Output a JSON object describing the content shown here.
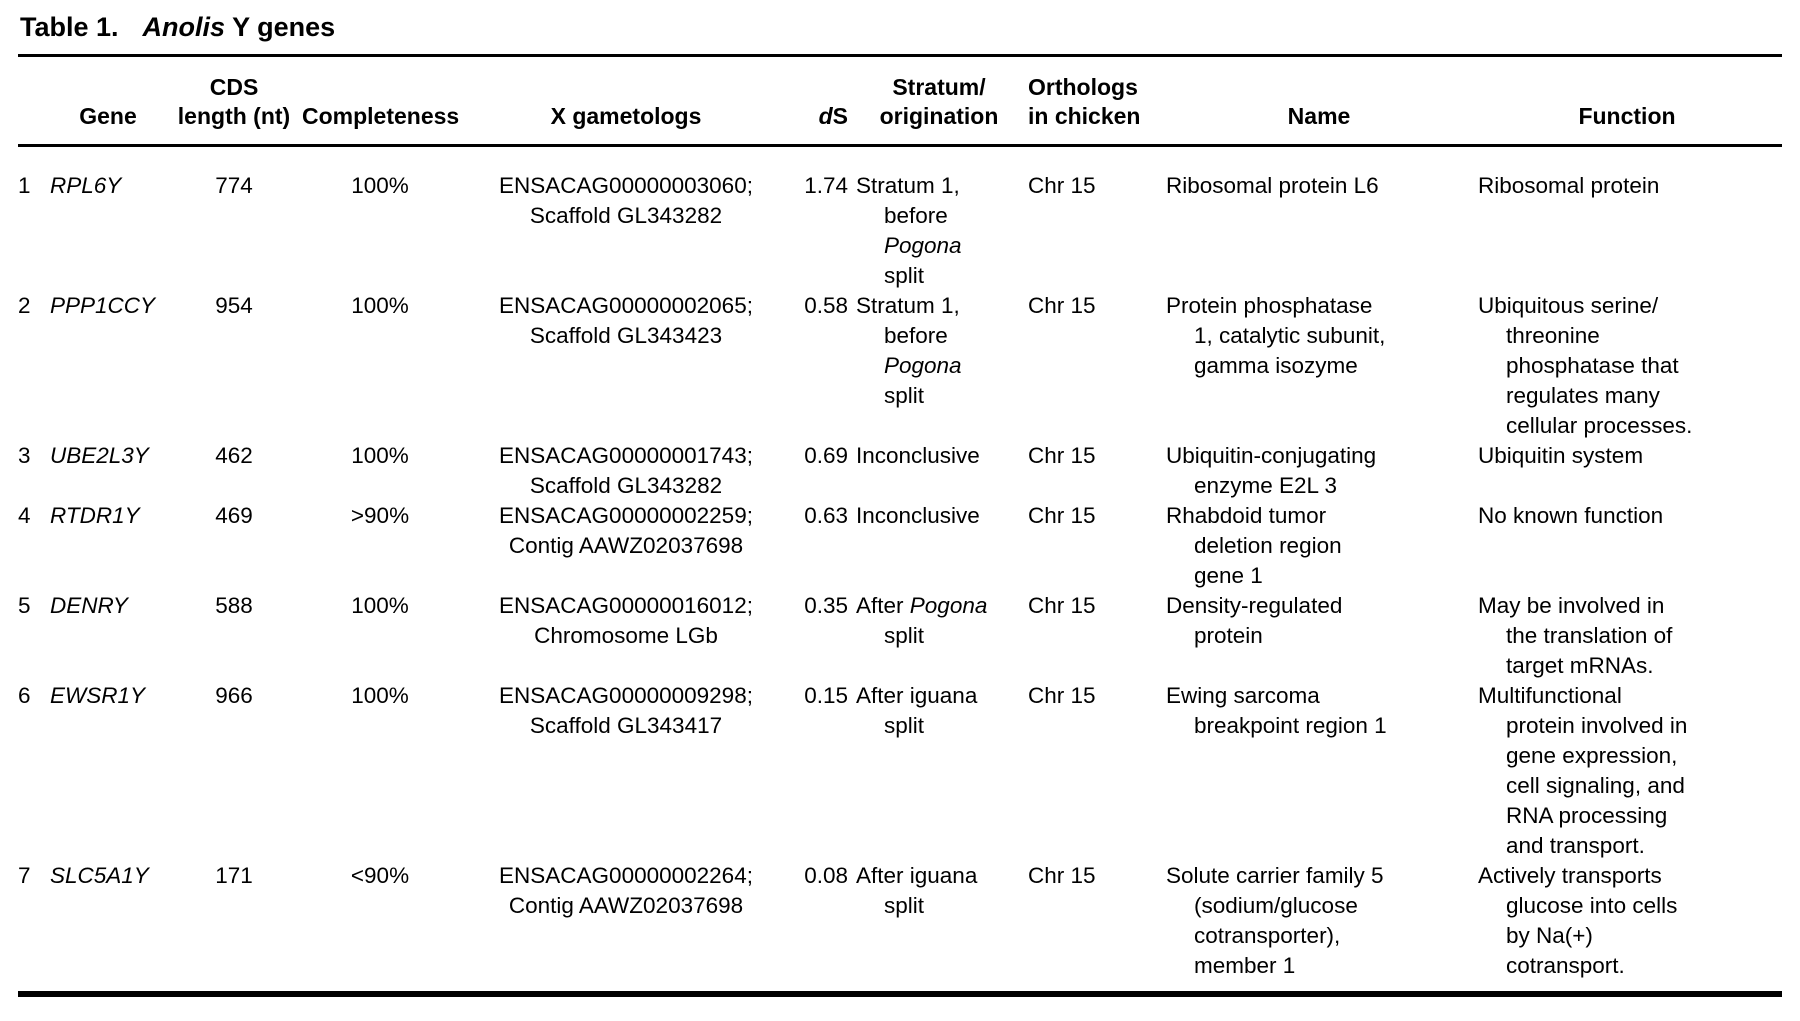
{
  "table": {
    "title": {
      "label": "Table 1.",
      "species": "Anolis",
      "suffix": "Y genes"
    },
    "headers": {
      "num": "",
      "gene": "Gene",
      "cds_length": "CDS\nlength (nt)",
      "completeness": "Completeness",
      "x_gametologs": "X gametologs",
      "ds": {
        "italic": "d",
        "rest": "S"
      },
      "stratum": "Stratum/\norigination",
      "orthologs": "Orthologs\nin chicken",
      "name": "Name",
      "function": "Function"
    },
    "rows": [
      {
        "num": "1",
        "gene": "RPL6Y",
        "cds_length": "774",
        "completeness": "100%",
        "x_gametologs": "ENSACAG00000003060;\nScaffold GL343282",
        "ds": "1.74",
        "stratum": {
          "pre": "Stratum 1,\nbefore\n",
          "italic": "Pogona",
          "post": "\nsplit"
        },
        "orthologs": "Chr 15",
        "name": "Ribosomal protein L6",
        "function": "Ribosomal protein"
      },
      {
        "num": "2",
        "gene": "PPP1CCY",
        "cds_length": "954",
        "completeness": "100%",
        "x_gametologs": "ENSACAG00000002065;\nScaffold GL343423",
        "ds": "0.58",
        "stratum": {
          "pre": "Stratum 1,\nbefore\n",
          "italic": "Pogona",
          "post": "\nsplit"
        },
        "orthologs": "Chr 15",
        "name": "Protein phosphatase\n1, catalytic subunit,\ngamma isozyme",
        "function": "Ubiquitous serine/\nthreonine\nphosphatase that\nregulates many\ncellular processes."
      },
      {
        "num": "3",
        "gene": "UBE2L3Y",
        "cds_length": "462",
        "completeness": "100%",
        "x_gametologs": "ENSACAG00000001743;\nScaffold GL343282",
        "ds": "0.69",
        "stratum": {
          "pre": "Inconclusive",
          "italic": "",
          "post": ""
        },
        "orthologs": "Chr 15",
        "name": "Ubiquitin-conjugating\nenzyme E2L 3",
        "function": "Ubiquitin system"
      },
      {
        "num": "4",
        "gene": "RTDR1Y",
        "cds_length": "469",
        "completeness": ">90%",
        "x_gametologs": "ENSACAG00000002259;\nContig AAWZ02037698",
        "ds": "0.63",
        "stratum": {
          "pre": "Inconclusive",
          "italic": "",
          "post": ""
        },
        "orthologs": "Chr 15",
        "name": "Rhabdoid tumor\ndeletion region\ngene 1",
        "function": "No known function"
      },
      {
        "num": "5",
        "gene": "DENRY",
        "cds_length": "588",
        "completeness": "100%",
        "x_gametologs": "ENSACAG00000016012;\nChromosome LGb",
        "ds": "0.35",
        "stratum": {
          "pre": "After ",
          "italic": "Pogona",
          "post": "\nsplit"
        },
        "orthologs": "Chr 15",
        "name": "Density-regulated\nprotein",
        "function": "May be involved in\nthe translation of\ntarget mRNAs."
      },
      {
        "num": "6",
        "gene": "EWSR1Y",
        "cds_length": "966",
        "completeness": "100%",
        "x_gametologs": "ENSACAG00000009298;\nScaffold GL343417",
        "ds": "0.15",
        "stratum": {
          "pre": "After iguana\nsplit",
          "italic": "",
          "post": ""
        },
        "orthologs": "Chr 15",
        "name": "Ewing sarcoma\nbreakpoint region 1",
        "function": "Multifunctional\nprotein involved in\ngene expression,\ncell signaling, and\nRNA processing\nand transport."
      },
      {
        "num": "7",
        "gene": "SLC5A1Y",
        "cds_length": "171",
        "completeness": "<90%",
        "x_gametologs": "ENSACAG00000002264;\nContig AAWZ02037698",
        "ds": "0.08",
        "stratum": {
          "pre": "After iguana\nsplit",
          "italic": "",
          "post": ""
        },
        "orthologs": "Chr 15",
        "name": "Solute carrier family 5\n(sodium/glucose\ncotransporter),\nmember 1",
        "function": "Actively transports\nglucose into cells\nby Na(+)\ncotransport."
      }
    ]
  }
}
